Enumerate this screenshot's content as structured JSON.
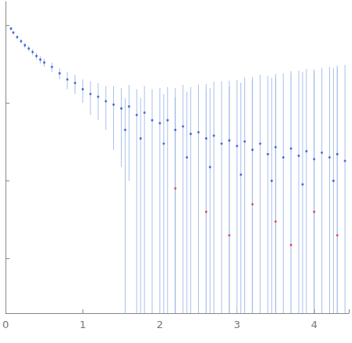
{
  "chart_data": {
    "type": "scatter",
    "log": "y",
    "grid": false,
    "tick_labels": "x",
    "xlim": [
      0,
      4.45
    ],
    "xticks": [
      0,
      1,
      2,
      3,
      4
    ],
    "ylim": [
      0.002,
      20
    ],
    "yticks": [
      0.01,
      0.1,
      1,
      10
    ],
    "series": [
      {
        "color": "#2a4fc9",
        "marker": "circle",
        "x": [
          0.07,
          0.1,
          0.15,
          0.2,
          0.25,
          0.3,
          0.35,
          0.4,
          0.45,
          0.5,
          0.6,
          0.7,
          0.8,
          0.9,
          1.0,
          1.1,
          1.2,
          1.3,
          1.4,
          1.5,
          1.6,
          1.7,
          1.8,
          1.9,
          2.0,
          2.1,
          2.2,
          2.3,
          2.4,
          2.5,
          2.6,
          2.7,
          2.8,
          2.9,
          3.0,
          3.1,
          3.2,
          3.3,
          3.4,
          3.5,
          3.6,
          3.7,
          3.8,
          3.9,
          4.0,
          4.1,
          4.2,
          4.3,
          4.4,
          1.55,
          1.75,
          2.05,
          2.35,
          2.65,
          3.05,
          3.45,
          3.85,
          4.25
        ],
        "values": [
          9.0,
          8.0,
          7.0,
          6.2,
          5.5,
          5.0,
          4.5,
          4.0,
          3.6,
          3.3,
          2.9,
          2.4,
          2.0,
          1.8,
          1.5,
          1.3,
          1.2,
          1.05,
          0.95,
          0.85,
          0.9,
          0.7,
          0.75,
          0.6,
          0.55,
          0.6,
          0.45,
          0.5,
          0.4,
          0.42,
          0.35,
          0.38,
          0.3,
          0.33,
          0.28,
          0.32,
          0.25,
          0.3,
          0.22,
          0.27,
          0.2,
          0.26,
          0.21,
          0.24,
          0.19,
          0.23,
          0.2,
          0.22,
          0.18,
          0.45,
          0.35,
          0.3,
          0.2,
          0.15,
          0.12,
          0.1,
          0.09,
          0.1
        ],
        "errors": [
          0.5,
          0.4,
          0.4,
          0.4,
          0.4,
          0.4,
          0.4,
          0.4,
          0.4,
          0.4,
          0.4,
          0.4,
          0.5,
          0.5,
          0.5,
          0.6,
          0.6,
          0.6,
          0.7,
          0.7,
          0.8,
          0.8,
          0.9,
          0.9,
          1.0,
          1.0,
          1.1,
          1.2,
          1.2,
          1.3,
          1.4,
          1.5,
          1.6,
          1.6,
          1.7,
          1.8,
          1.9,
          2.0,
          2.0,
          2.1,
          2.2,
          2.3,
          2.4,
          2.5,
          2.5,
          2.6,
          2.7,
          2.8,
          2.9,
          0.7,
          0.8,
          1.0,
          1.2,
          1.4,
          1.7,
          2.0,
          2.4,
          2.7
        ]
      },
      {
        "color": "#e0303a",
        "marker": "circle",
        "x": [
          2.2,
          2.6,
          2.9,
          3.2,
          3.5,
          3.7,
          4.0,
          4.3
        ],
        "values": [
          0.08,
          0.04,
          0.02,
          0.05,
          0.03,
          0.015,
          0.04,
          0.02
        ],
        "errors": [
          1.1,
          1.4,
          1.6,
          1.9,
          2.1,
          2.3,
          2.5,
          2.8
        ]
      }
    ]
  }
}
